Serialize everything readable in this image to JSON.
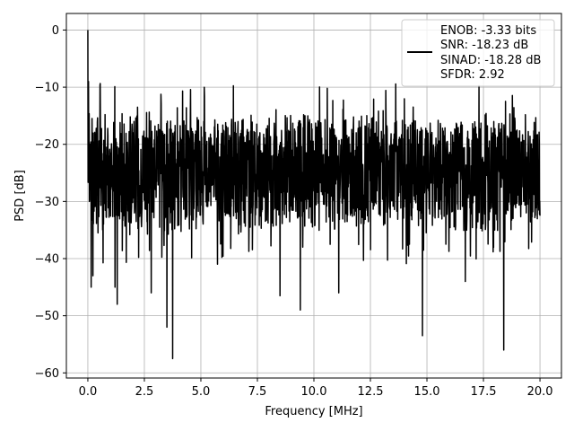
{
  "chart_data": {
    "type": "line",
    "title": "",
    "xlabel": "Frequency [MHz]",
    "ylabel": "PSD [dB]",
    "xlim": [
      -0.95,
      20.95
    ],
    "ylim": [
      -60.9,
      2.9
    ],
    "xticks": [
      0.0,
      2.5,
      5.0,
      7.5,
      10.0,
      12.5,
      15.0,
      17.5,
      20.0
    ],
    "xtick_labels": [
      "0.0",
      "2.5",
      "5.0",
      "7.5",
      "10.0",
      "12.5",
      "15.0",
      "17.5",
      "20.0"
    ],
    "yticks": [
      0,
      -10,
      -20,
      -30,
      -40,
      -50,
      -60
    ],
    "ytick_labels": [
      "0",
      "−10",
      "−20",
      "−30",
      "−40",
      "−50",
      "−60"
    ],
    "grid": true,
    "legend_position": "top-right",
    "series": [
      {
        "color": "#000000",
        "legend_lines": [
          "ENOB: -3.33 bits",
          "SNR: -18.23 dB",
          "SINAD: -18.28 dB",
          "SFDR: 2.92"
        ],
        "description": "Noise-like PSD trace over 0 to 20 MHz, fluctuating mostly between about -35 dB and -15 dB, with a 0 dB peak at the start and deep dips.",
        "peak": {
          "x": 0.0,
          "y": 0.0
        },
        "band": {
          "x_start": 0.0,
          "x_end": 20.0,
          "upper": -15,
          "lower": -35
        },
        "notable_points": [
          {
            "x": 0.03,
            "y": -9.0
          },
          {
            "x": 0.1,
            "y": -27.0
          },
          {
            "x": 0.15,
            "y": -45.0
          },
          {
            "x": 0.22,
            "y": -43.0
          },
          {
            "x": 1.2,
            "y": -45.0
          },
          {
            "x": 1.3,
            "y": -48.0
          },
          {
            "x": 2.8,
            "y": -46.0
          },
          {
            "x": 3.5,
            "y": -52.0
          },
          {
            "x": 3.75,
            "y": -57.5
          },
          {
            "x": 8.5,
            "y": -46.5
          },
          {
            "x": 9.4,
            "y": -49.0
          },
          {
            "x": 11.1,
            "y": -46.0
          },
          {
            "x": 14.8,
            "y": -53.5
          },
          {
            "x": 16.7,
            "y": -44.0
          },
          {
            "x": 18.4,
            "y": -56.0
          }
        ]
      }
    ]
  }
}
